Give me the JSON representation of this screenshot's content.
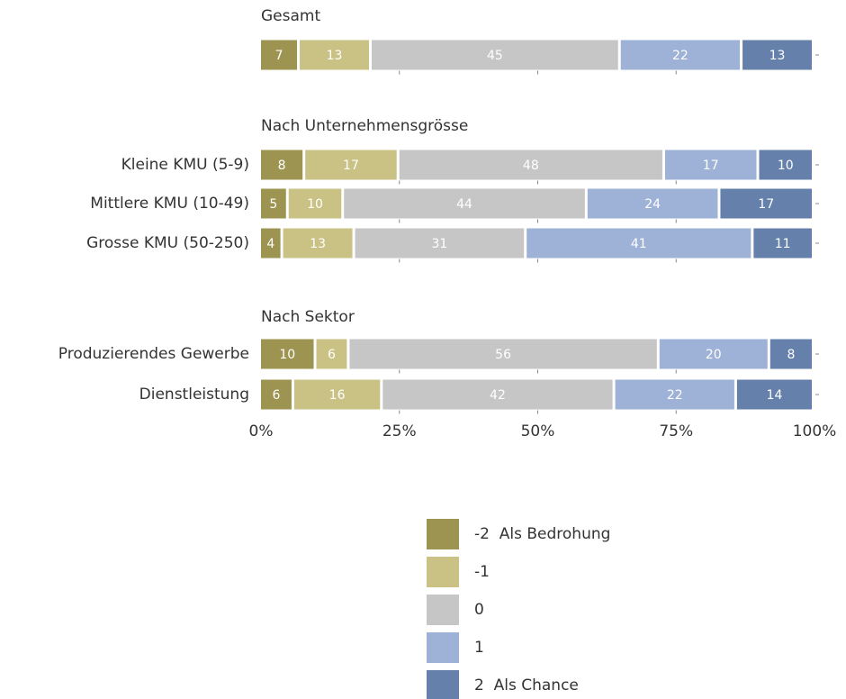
{
  "chart_data": {
    "type": "bar",
    "orientation": "horizontal",
    "stacked": true,
    "groups": [
      {
        "title": "Gesamt",
        "categories": [
          null
        ]
      },
      {
        "title": "Nach Unternehmensgrösse",
        "categories": [
          "Kleine KMU (5-9)",
          "Mittlere KMU (10-49)",
          "Grosse KMU (50-250)"
        ]
      },
      {
        "title": "Nach Sektor",
        "categories": [
          "Produzierendes Gewerbe",
          "Dienstleistung"
        ]
      }
    ],
    "series": [
      {
        "name": "-2  Als Bedrohung",
        "color": "#9c9450",
        "values": [
          7,
          8,
          5,
          4,
          10,
          6
        ]
      },
      {
        "name": "-1",
        "color": "#cac285",
        "values": [
          13,
          17,
          10,
          13,
          6,
          16
        ]
      },
      {
        "name": "0",
        "color": "#c6c6c6",
        "values": [
          45,
          48,
          44,
          31,
          56,
          42
        ]
      },
      {
        "name": "1",
        "color": "#9eb1d7",
        "values": [
          22,
          17,
          24,
          41,
          20,
          22
        ]
      },
      {
        "name": "2  Als Chance",
        "color": "#6680ac",
        "values": [
          13,
          10,
          17,
          11,
          8,
          14
        ]
      }
    ],
    "xlim": [
      0,
      100
    ],
    "xticks": [
      {
        "value": 0,
        "label": "0%"
      },
      {
        "value": 25,
        "label": "25%"
      },
      {
        "value": 50,
        "label": "50%"
      },
      {
        "value": 75,
        "label": "75%"
      },
      {
        "value": 100,
        "label": "100%"
      }
    ],
    "legend": "bottom"
  }
}
